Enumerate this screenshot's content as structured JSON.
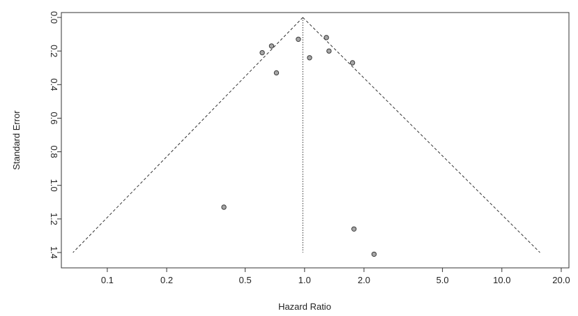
{
  "chart_data": {
    "type": "scatter",
    "title": "",
    "xlabel": "Hazard Ratio",
    "ylabel": "Standard Error",
    "x_scale": "log",
    "y_reversed": true,
    "xlim": [
      0.0645,
      20.5
    ],
    "ylim": [
      0.0,
      1.4
    ],
    "x_ticks": [
      0.1,
      0.2,
      0.5,
      1.0,
      2.0,
      5.0,
      10.0,
      20.0
    ],
    "x_tick_labels": [
      "0.1",
      "0.2",
      "0.5",
      "1.0",
      "2.0",
      "5.0",
      "10.0",
      "20.0"
    ],
    "y_ticks": [
      0.0,
      0.2,
      0.4,
      0.6,
      0.8,
      1.0,
      1.2,
      1.4
    ],
    "y_tick_labels": [
      "0.0",
      "0.2",
      "0.4",
      "0.6",
      "0.8",
      "1.0",
      "1.2",
      "1.4"
    ],
    "grid": false,
    "summary_estimate": 0.98,
    "funnel_limits": {
      "apex": [
        0.98,
        0.0
      ],
      "lower_left": [
        0.067,
        1.4
      ],
      "lower_right": [
        15.6,
        1.4
      ]
    },
    "points": [
      {
        "x": 0.93,
        "y": 0.13
      },
      {
        "x": 1.29,
        "y": 0.12
      },
      {
        "x": 0.68,
        "y": 0.17
      },
      {
        "x": 0.61,
        "y": 0.21
      },
      {
        "x": 1.33,
        "y": 0.2
      },
      {
        "x": 1.06,
        "y": 0.24
      },
      {
        "x": 1.75,
        "y": 0.27
      },
      {
        "x": 0.72,
        "y": 0.33
      },
      {
        "x": 0.39,
        "y": 1.13
      },
      {
        "x": 1.78,
        "y": 1.26
      },
      {
        "x": 2.25,
        "y": 1.41
      }
    ],
    "colors": {
      "point_fill": "#a6a6a6",
      "point_stroke": "#3a3a3a",
      "line": "#333333",
      "axis": "#333333"
    }
  }
}
